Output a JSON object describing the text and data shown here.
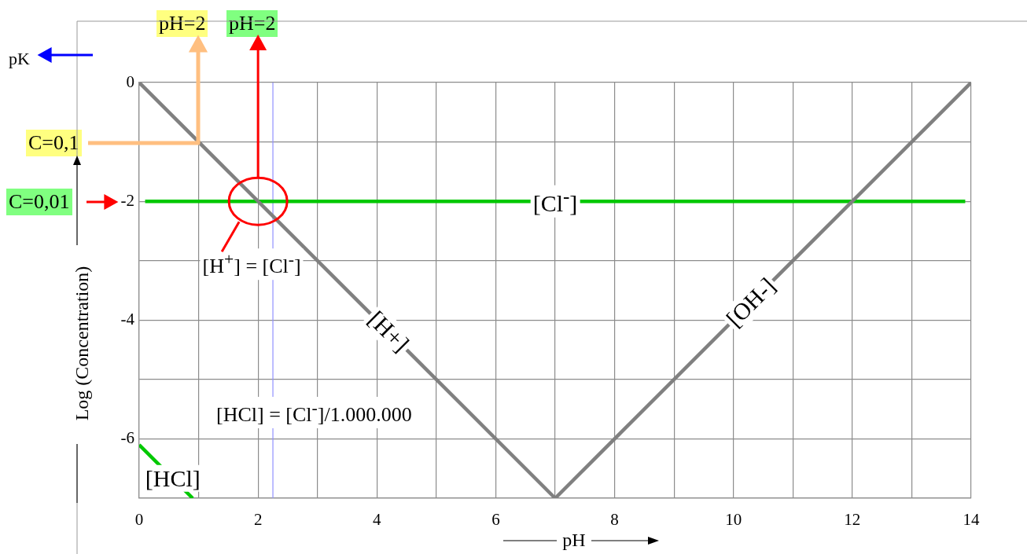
{
  "chart_data": {
    "type": "line",
    "xlabel": "pH",
    "ylabel": "Log (Concentration)",
    "xlim": [
      0,
      14
    ],
    "ylim": [
      -7,
      0
    ],
    "xticks": [
      0,
      {
        "value": 1,
        "label": null
      },
      2,
      {
        "value": 3,
        "label": null
      },
      4,
      {
        "value": 5,
        "label": null
      },
      6,
      {
        "value": 7,
        "label": null
      },
      8,
      {
        "value": 9,
        "label": null
      },
      10,
      {
        "value": 11,
        "label": null
      },
      12,
      {
        "value": 13,
        "label": null
      },
      14
    ],
    "yticks": [
      {
        "value": -7,
        "label": null
      },
      -6,
      {
        "value": -5,
        "label": null
      },
      -4,
      {
        "value": -3,
        "label": null
      },
      -2,
      {
        "value": -1,
        "label": null
      },
      0
    ],
    "grid": true,
    "series": [
      {
        "name": "[H+]",
        "color": "#808080",
        "x": [
          0,
          7
        ],
        "values": [
          0,
          -7
        ]
      },
      {
        "name": "[OH-]",
        "color": "#808080",
        "x": [
          7,
          14
        ],
        "values": [
          -7,
          0
        ]
      },
      {
        "name": "[Cl$^{-}$]",
        "color": "#00c800",
        "x": [
          0.1,
          13.9
        ],
        "values": [
          -2,
          -2
        ]
      },
      {
        "name": "[HCl]",
        "color": "#00c800",
        "x": [
          0,
          0.9
        ],
        "values": [
          -6.1,
          -7
        ]
      }
    ],
    "ref_lines": [
      {
        "axis": "x",
        "value": 2.25,
        "color": "#9090ff"
      }
    ],
    "annotations": [
      "pK",
      "pH=2",
      "pH=2",
      "C=0,1",
      "C=0,01",
      {
        "text": "[H$^{+}$] = [Cl$^{-}$]",
        "x": 2,
        "y": -2
      },
      "[HCl] = [Cl$^{-}$]/1.000.000"
    ]
  }
}
